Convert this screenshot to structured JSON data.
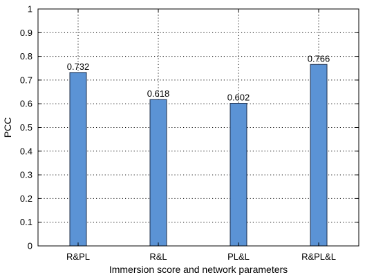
{
  "chart_data": {
    "type": "bar",
    "categories": [
      "R&PL",
      "R&L",
      "PL&L",
      "R&PL&L"
    ],
    "values": [
      0.732,
      0.618,
      0.602,
      0.766
    ],
    "data_labels": [
      "0.732",
      "0.618",
      "0.602",
      "0.766"
    ],
    "xlabel": "Immersion score and network parameters",
    "ylabel": "PCC",
    "ylim": [
      0,
      1
    ],
    "yticks": [
      0,
      0.1,
      0.2,
      0.3,
      0.4,
      0.5,
      0.6,
      0.7,
      0.8,
      0.9,
      1
    ],
    "ytick_labels": [
      "0",
      "0.1",
      "0.2",
      "0.3",
      "0.4",
      "0.5",
      "0.6",
      "0.7",
      "0.8",
      "0.9",
      "1"
    ],
    "grid": true,
    "bar_color": "#5b93d5"
  }
}
